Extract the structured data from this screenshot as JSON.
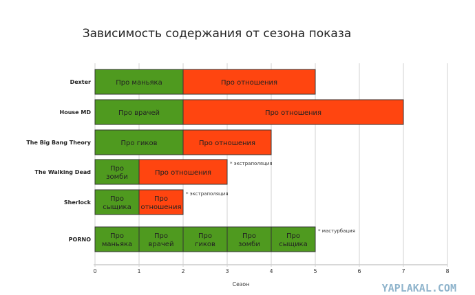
{
  "chart_data": {
    "type": "bar",
    "orientation": "horizontal",
    "stacked": true,
    "title": "Зависимость содержания  от сезона показа",
    "xlabel": "Сезон",
    "ylabel": "",
    "xlim": [
      0,
      8
    ],
    "x_ticks": [
      "0",
      "1",
      "2",
      "3",
      "4",
      "5",
      "6",
      "7",
      "8"
    ],
    "grid": true,
    "colors": {
      "green": "#4f9a1f",
      "red": "#ff4510"
    },
    "rows": [
      {
        "category": "Dexter",
        "segments": [
          {
            "label": "Про маньяка",
            "start": 0,
            "end": 2,
            "color": "green"
          },
          {
            "label": "Про отношения",
            "start": 2,
            "end": 5,
            "color": "red"
          }
        ],
        "note": ""
      },
      {
        "category": "House MD",
        "segments": [
          {
            "label": "Про врачей",
            "start": 0,
            "end": 2,
            "color": "green"
          },
          {
            "label": "Про отношения",
            "start": 2,
            "end": 7,
            "color": "red"
          }
        ],
        "note": ""
      },
      {
        "category": "The Big Bang Theory",
        "segments": [
          {
            "label": "Про гиков",
            "start": 0,
            "end": 2,
            "color": "green"
          },
          {
            "label": "Про отношения",
            "start": 2,
            "end": 4,
            "color": "red"
          }
        ],
        "note": ""
      },
      {
        "category": "The Walking Dead",
        "segments": [
          {
            "label": "Про\nзомби",
            "start": 0,
            "end": 1,
            "color": "green"
          },
          {
            "label": "Про отношения",
            "start": 1,
            "end": 3,
            "color": "red"
          }
        ],
        "note": "* экстраполяция"
      },
      {
        "category": "Sherlock",
        "segments": [
          {
            "label": "Про\nсыщика",
            "start": 0,
            "end": 1,
            "color": "green"
          },
          {
            "label": "Про\nотношения",
            "start": 1,
            "end": 2,
            "color": "red"
          }
        ],
        "note": "* экстраполяция"
      },
      {
        "category": "PORNO",
        "segments": [
          {
            "label": "Про\nманьяка",
            "start": 0,
            "end": 1,
            "color": "green"
          },
          {
            "label": "Про\nврачей",
            "start": 1,
            "end": 2,
            "color": "green"
          },
          {
            "label": "Про\nгиков",
            "start": 2,
            "end": 3,
            "color": "green"
          },
          {
            "label": "Про\nзомби",
            "start": 3,
            "end": 4,
            "color": "green"
          },
          {
            "label": "Про\nсыщика",
            "start": 4,
            "end": 5,
            "color": "green"
          }
        ],
        "note": "* мастурбация"
      }
    ]
  },
  "watermark": "YAPLAKAL.COM"
}
